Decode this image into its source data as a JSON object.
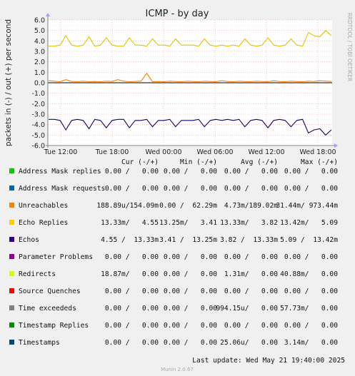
{
  "chart_data": {
    "type": "line",
    "title": "ICMP - by day",
    "ylabel": "packets in (-) / out (+) per second",
    "side_label": "RRDTOOL / TOBI OETIKER",
    "ylim": [
      -6.0,
      6.0
    ],
    "y_ticks": [
      "6.0",
      "5.0",
      "4.0",
      "3.0",
      "2.0",
      "1.0",
      "0.0",
      "-1.0",
      "-2.0",
      "-3.0",
      "-4.0",
      "-5.0",
      "-6.0"
    ],
    "x_ticks": [
      "Tue 12:00",
      "Tue 18:00",
      "Wed 00:00",
      "Wed 06:00",
      "Wed 12:00",
      "Wed 18:00"
    ],
    "grid": true,
    "series": [
      {
        "name": "Echo Replies",
        "color": "#e6c200",
        "values": [
          3.5,
          3.5,
          3.6,
          4.5,
          3.6,
          3.5,
          3.6,
          4.4,
          3.5,
          3.6,
          4.3,
          3.6,
          3.5,
          3.5,
          4.3,
          3.6,
          3.6,
          3.5,
          4.2,
          3.6,
          3.6,
          3.5,
          4.2,
          3.6,
          3.6,
          3.6,
          3.5,
          4.2,
          3.6,
          3.5,
          3.6,
          3.5,
          3.6,
          3.5,
          4.2,
          3.6,
          3.5,
          3.6,
          4.3,
          3.6,
          3.5,
          3.6,
          4.2,
          3.6,
          3.5,
          4.8,
          4.5,
          4.4,
          5.0,
          4.5
        ]
      },
      {
        "name": "Echos",
        "color": "#1a0066",
        "values": [
          -3.5,
          -3.5,
          -3.6,
          -4.5,
          -3.6,
          -3.5,
          -3.6,
          -4.4,
          -3.5,
          -3.6,
          -4.3,
          -3.6,
          -3.5,
          -3.5,
          -4.3,
          -3.6,
          -3.6,
          -3.5,
          -4.2,
          -3.6,
          -3.6,
          -3.5,
          -4.2,
          -3.6,
          -3.6,
          -3.6,
          -3.5,
          -4.2,
          -3.6,
          -3.5,
          -3.6,
          -3.5,
          -3.6,
          -3.5,
          -4.2,
          -3.6,
          -3.5,
          -3.6,
          -4.3,
          -3.6,
          -3.5,
          -3.6,
          -4.2,
          -3.6,
          -3.5,
          -4.8,
          -4.5,
          -4.4,
          -5.0,
          -4.5
        ]
      },
      {
        "name": "Unreachables",
        "color": "#ff7f00",
        "values": [
          0.2,
          0.15,
          0.1,
          0.3,
          0.12,
          0.1,
          0.15,
          0.1,
          0.12,
          0.1,
          0.15,
          0.12,
          0.3,
          0.15,
          0.1,
          0.12,
          0.15,
          0.9,
          0.1,
          0.12,
          0.1,
          0.15,
          0.12,
          0.1,
          0.15,
          0.12,
          0.1,
          0.15,
          0.12,
          0.1,
          0.2,
          0.12,
          0.1,
          0.15,
          0.12,
          0.1,
          0.15,
          0.12,
          0.1,
          0.2,
          0.12,
          0.1,
          0.15,
          0.12,
          0.1,
          0.15,
          0.12,
          0.2,
          0.15,
          0.12
        ]
      }
    ],
    "legend_header": [
      "Cur (-/+)",
      "Min (-/+)",
      "Avg (-/+)",
      "Max (-/+)"
    ],
    "legend": [
      {
        "name": "Address Mask replies",
        "color": "#00cc00",
        "cur": "0.00 /   0.00",
        "min": "0.00 /   0.00",
        "avg": "0.00 /   0.00",
        "max": "0.00 /   0.00"
      },
      {
        "name": "Address Mask requests",
        "color": "#0066b3",
        "cur": "0.00 /   0.00",
        "min": "0.00 /   0.00",
        "avg": "0.00 /   0.00",
        "max": "0.00 /   0.00"
      },
      {
        "name": "Unreachables",
        "color": "#ff8000",
        "cur": "188.89u/154.09m",
        "min": "0.00 /  62.29m",
        "avg": "4.73m/189.02m",
        "max": "31.44m/ 973.44m"
      },
      {
        "name": "Echo Replies",
        "color": "#ffcc00",
        "cur": "13.33m/   4.55",
        "min": "13.25m/   3.41",
        "avg": "13.33m/   3.82",
        "max": "13.42m/   5.09"
      },
      {
        "name": "Echos",
        "color": "#330099",
        "cur": "4.55 /  13.33m",
        "min": "3.41 /  13.25m",
        "avg": "3.82 /  13.33m",
        "max": "5.09 /  13.42m"
      },
      {
        "name": "Parameter Problems",
        "color": "#990099",
        "cur": "0.00 /   0.00",
        "min": "0.00 /   0.00",
        "avg": "0.00 /   0.00",
        "max": "0.00 /   0.00"
      },
      {
        "name": "Redirects",
        "color": "#ccff00",
        "cur": "18.87m/   0.00",
        "min": "0.00 /   0.00",
        "avg": "1.31m/   0.00",
        "max": "40.88m/   0.00"
      },
      {
        "name": "Source Quenches",
        "color": "#ff0000",
        "cur": "0.00 /   0.00",
        "min": "0.00 /   0.00",
        "avg": "0.00 /   0.00",
        "max": "0.00 /   0.00"
      },
      {
        "name": "Time exceededs",
        "color": "#808080",
        "cur": "0.00 /   0.00",
        "min": "0.00 /   0.00",
        "avg": "994.15u/   0.00",
        "max": "57.73m/   0.00"
      },
      {
        "name": "Timestamp Replies",
        "color": "#008f00",
        "cur": "0.00 /   0.00",
        "min": "0.00 /   0.00",
        "avg": "0.00 /   0.00",
        "max": "0.00 /   0.00"
      },
      {
        "name": "Timestamps",
        "color": "#00487d",
        "cur": "0.00 /   0.00",
        "min": "0.00 /   0.00",
        "avg": "25.06u/   0.00",
        "max": "3.14m/   0.00"
      }
    ],
    "last_update": "Last update: Wed May 21 19:40:00 2025",
    "footer": "Munin 2.0.67"
  }
}
